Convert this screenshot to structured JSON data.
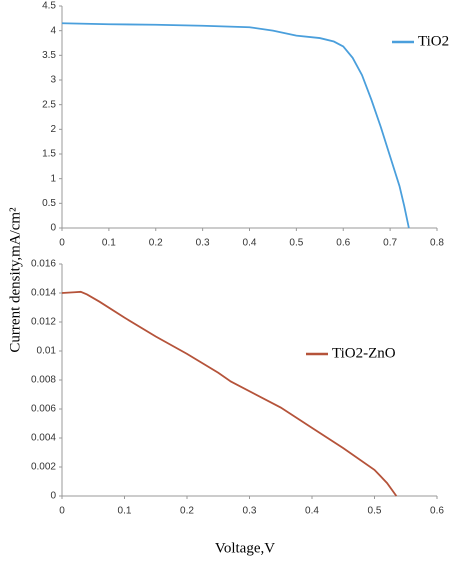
{
  "chart_data": [
    {
      "type": "line",
      "ylabel": "Current density,mA/cm²",
      "x": [
        0,
        0.05,
        0.1,
        0.2,
        0.3,
        0.4,
        0.45,
        0.5,
        0.55,
        0.58,
        0.6,
        0.62,
        0.64,
        0.66,
        0.68,
        0.7,
        0.72,
        0.73,
        0.74
      ],
      "series": [
        {
          "name": "TiO2",
          "color": "#4a9fdc",
          "values": [
            4.15,
            4.14,
            4.13,
            4.12,
            4.1,
            4.07,
            4.0,
            3.9,
            3.85,
            3.78,
            3.68,
            3.45,
            3.1,
            2.6,
            2.05,
            1.45,
            0.85,
            0.45,
            0
          ]
        }
      ],
      "xlim": [
        0,
        0.8
      ],
      "xticks": [
        0,
        0.1,
        0.2,
        0.3,
        0.4,
        0.5,
        0.6,
        0.7,
        0.8
      ],
      "ylim": [
        0,
        4.5
      ],
      "yticks": [
        0,
        0.5,
        1,
        1.5,
        2,
        2.5,
        3,
        3.5,
        4,
        4.5
      ],
      "legend": "upper right"
    },
    {
      "type": "line",
      "xlabel": "Voltage,V",
      "x": [
        0,
        0.02,
        0.03,
        0.04,
        0.06,
        0.1,
        0.15,
        0.2,
        0.25,
        0.27,
        0.35,
        0.4,
        0.45,
        0.5,
        0.52,
        0.535
      ],
      "series": [
        {
          "name": "TiO2-ZnO",
          "color": "#b5533a",
          "values": [
            0.014,
            0.01405,
            0.01408,
            0.0139,
            0.0134,
            0.0123,
            0.011,
            0.0098,
            0.0085,
            0.0079,
            0.0061,
            0.0047,
            0.0033,
            0.0018,
            0.0009,
            0
          ]
        }
      ],
      "xlim": [
        0,
        0.6
      ],
      "xticks": [
        0,
        0.1,
        0.2,
        0.3,
        0.4,
        0.5,
        0.6
      ],
      "ylim": [
        0,
        0.016
      ],
      "yticks": [
        0,
        0.002,
        0.004,
        0.006,
        0.008,
        0.01,
        0.012,
        0.014,
        0.016
      ],
      "legend": "center right"
    }
  ]
}
